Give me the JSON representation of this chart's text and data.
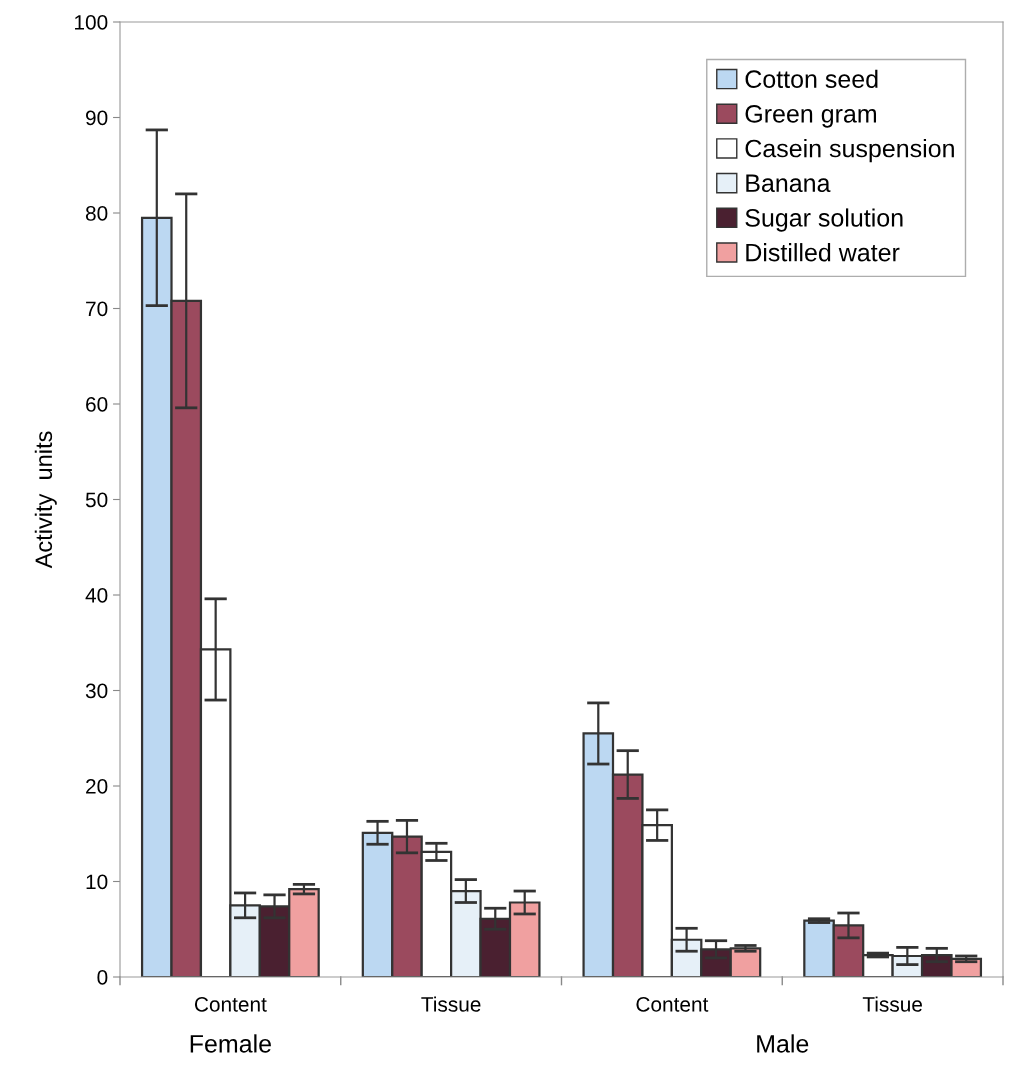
{
  "chart_data": {
    "type": "bar",
    "ylabel": "Activity  units",
    "categories": [
      "Content",
      "Tissue",
      "Content",
      "Tissue"
    ],
    "annotations": [
      "Female",
      "Male"
    ],
    "ylim": [
      0,
      100
    ],
    "yticks": [
      0,
      10,
      20,
      30,
      40,
      50,
      60,
      70,
      80,
      90,
      100
    ],
    "grid": false,
    "legend": "top right",
    "series": [
      {
        "name": "Cotton seed",
        "color": "#bcd8f2",
        "values": [
          79.5,
          15.1,
          25.5,
          5.9
        ],
        "errors": [
          9.2,
          1.2,
          3.2,
          0.2
        ]
      },
      {
        "name": "Green gram",
        "color": "#9b4a5e",
        "values": [
          70.8,
          14.7,
          21.2,
          5.4
        ],
        "errors": [
          11.2,
          1.7,
          2.5,
          1.3
        ]
      },
      {
        "name": "Casein suspension",
        "color": "#ffffff",
        "values": [
          34.3,
          13.1,
          15.9,
          2.3
        ],
        "errors": [
          5.3,
          0.9,
          1.6,
          0.2
        ]
      },
      {
        "name": "Banana",
        "color": "#e6f0f8",
        "values": [
          7.5,
          9.0,
          3.9,
          2.2
        ],
        "errors": [
          1.3,
          1.2,
          1.2,
          0.9
        ]
      },
      {
        "name": "Sugar solution",
        "color": "#4a2030",
        "values": [
          7.4,
          6.1,
          2.9,
          2.3
        ],
        "errors": [
          1.2,
          1.1,
          0.9,
          0.7
        ]
      },
      {
        "name": "Distilled water",
        "color": "#f0a0a0",
        "values": [
          9.2,
          7.8,
          3.0,
          1.9
        ],
        "errors": [
          0.5,
          1.2,
          0.3,
          0.3
        ]
      }
    ]
  }
}
